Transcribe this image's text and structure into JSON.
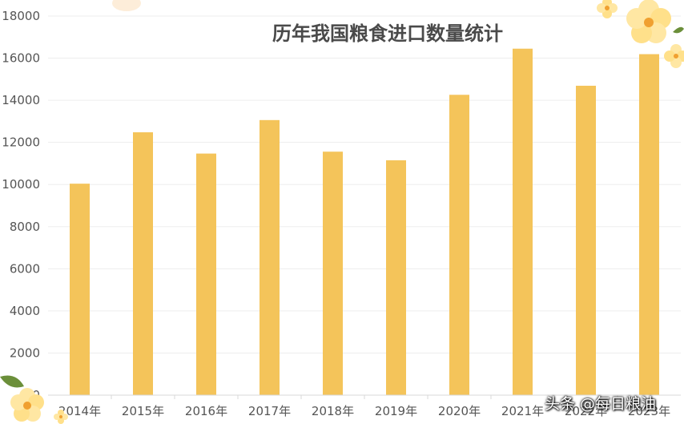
{
  "chart_data": {
    "type": "bar",
    "title": "历年我国粮食进口数量统计",
    "xlabel": "",
    "ylabel": "",
    "categories": [
      "2014年",
      "2015年",
      "2016年",
      "2017年",
      "2018年",
      "2019年",
      "2020年",
      "2021年",
      "2022年",
      "2023年"
    ],
    "values": [
      10040,
      12480,
      11470,
      13060,
      11560,
      11150,
      14260,
      16450,
      14690,
      16190
    ],
    "ylim": [
      0,
      18000
    ],
    "yticks": [
      "0",
      "2000",
      "4000",
      "6000",
      "8000",
      "10000",
      "12000",
      "14000",
      "16000",
      "18000"
    ],
    "grid": true,
    "legend": "none",
    "bar_color": "#f4c45a"
  },
  "watermark": "头条 @每日粮油"
}
